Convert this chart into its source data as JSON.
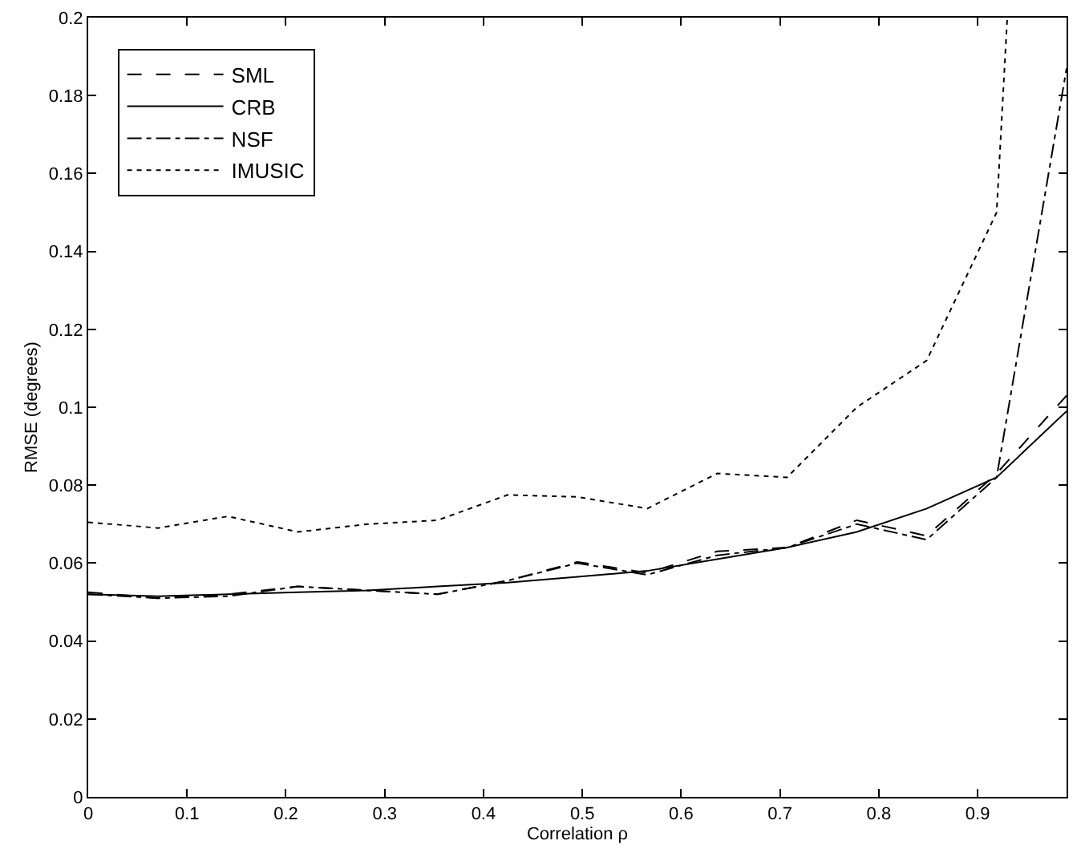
{
  "chart_data": {
    "type": "line",
    "xlabel": "Correlation ρ",
    "ylabel": "RMSE (degrees)",
    "x": [
      0,
      0.0707,
      0.1414,
      0.2121,
      0.2828,
      0.3536,
      0.4243,
      0.495,
      0.5657,
      0.6364,
      0.7071,
      0.7778,
      0.8485,
      0.9192,
      0.99
    ],
    "series": [
      {
        "name": "SML",
        "color": "#000000",
        "line_style": "dashed",
        "values": [
          0.0525,
          0.051,
          0.052,
          0.054,
          0.053,
          0.052,
          0.0555,
          0.0603,
          0.0575,
          0.063,
          0.064,
          0.071,
          0.067,
          0.083,
          0.103
        ]
      },
      {
        "name": "CRB",
        "color": "#000000",
        "line_style": "solid",
        "values": [
          0.052,
          0.0515,
          0.052,
          0.0525,
          0.053,
          0.054,
          0.055,
          0.0565,
          0.058,
          0.061,
          0.064,
          0.068,
          0.074,
          0.082,
          0.099
        ]
      },
      {
        "name": "NSF",
        "color": "#000000",
        "line_style": "dashdot",
        "values": [
          0.052,
          0.051,
          0.0515,
          0.054,
          0.053,
          0.052,
          0.0555,
          0.06,
          0.057,
          0.062,
          0.064,
          0.07,
          0.066,
          0.082,
          0.187
        ]
      },
      {
        "name": "IMUSIC",
        "color": "#000000",
        "line_style": "dotted",
        "x": [
          0,
          0.0707,
          0.1414,
          0.2121,
          0.2828,
          0.3536,
          0.4243,
          0.495,
          0.5657,
          0.6364,
          0.7071,
          0.7778,
          0.8485,
          0.9192,
          0.93
        ],
        "values": [
          0.0705,
          0.069,
          0.072,
          0.068,
          0.07,
          0.071,
          0.0775,
          0.077,
          0.074,
          0.083,
          0.082,
          0.1,
          0.112,
          0.15,
          0.2
        ]
      }
    ],
    "xlim": [
      0,
      0.99
    ],
    "xticks": [
      0,
      0.1,
      0.2,
      0.3,
      0.4,
      0.5,
      0.6,
      0.7,
      0.8,
      0.9
    ],
    "ylim": [
      0,
      0.2
    ],
    "yticks": [
      0,
      0.02,
      0.04,
      0.06,
      0.08,
      0.1,
      0.12,
      0.14,
      0.16,
      0.18,
      0.2
    ],
    "legend": "top left",
    "grid": false,
    "marker": "none"
  }
}
